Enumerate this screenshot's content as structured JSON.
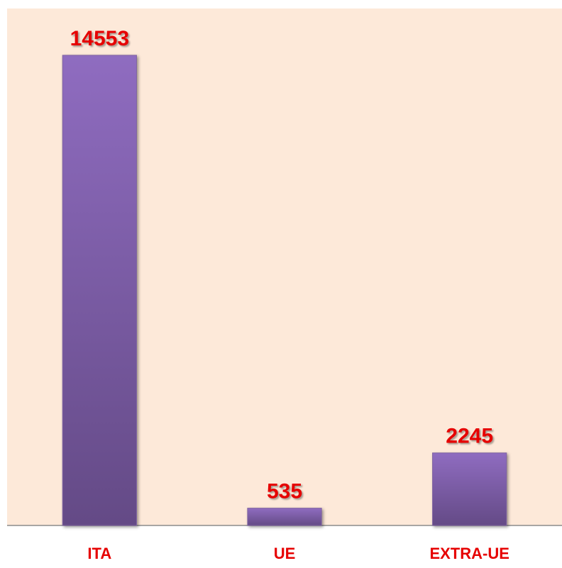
{
  "chart_data": {
    "type": "bar",
    "categories": [
      "ITA",
      "UE",
      "EXTRA-UE"
    ],
    "values": [
      14553,
      535,
      2245
    ],
    "color": "#8064a2",
    "ylim": [
      0,
      16000
    ]
  }
}
